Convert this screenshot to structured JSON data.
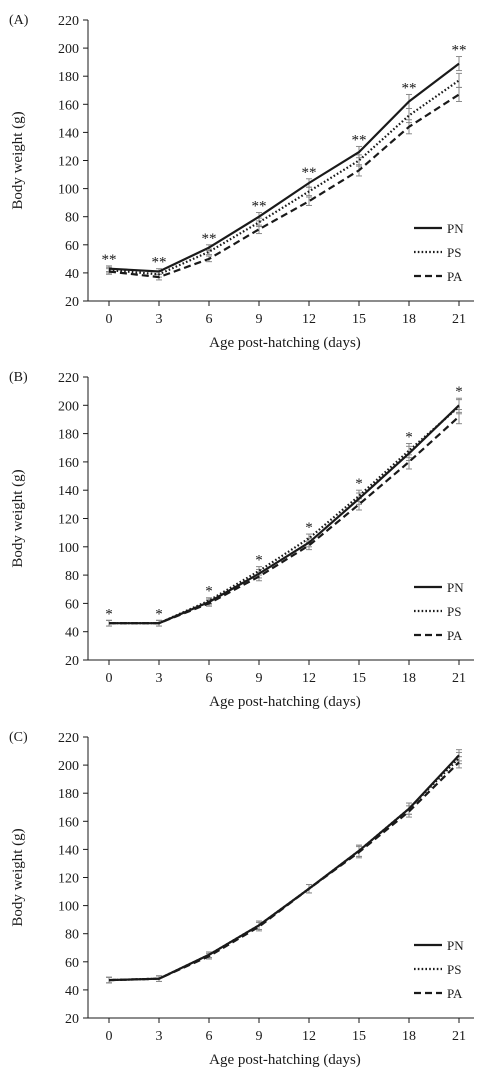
{
  "chart_data": [
    {
      "type": "line",
      "panel_label": "(A)",
      "xlabel": "Age post-hatching (days)",
      "ylabel": "Body weight (g)",
      "x": [
        0,
        3,
        6,
        9,
        12,
        15,
        18,
        21
      ],
      "xticks": [
        "0",
        "3",
        "6",
        "9",
        "12",
        "15",
        "18",
        "21"
      ],
      "ylim": [
        20,
        220
      ],
      "yticks": [
        "20",
        "40",
        "60",
        "80",
        "100",
        "120",
        "140",
        "160",
        "180",
        "200",
        "220"
      ],
      "legend_position": "bottom-right",
      "annotations": [
        "**",
        "**",
        "**",
        "**",
        "**",
        "**",
        "**",
        "**"
      ],
      "series": [
        {
          "name": "PN",
          "style": "solid",
          "values": [
            43,
            41,
            58,
            80,
            104,
            126,
            162,
            189
          ],
          "error": [
            2,
            2,
            2,
            3,
            3,
            4,
            5,
            5
          ]
        },
        {
          "name": "PS",
          "style": "dotted",
          "values": [
            42,
            39,
            55,
            76,
            98,
            120,
            152,
            177
          ],
          "error": [
            2,
            2,
            2,
            3,
            3,
            4,
            5,
            5
          ]
        },
        {
          "name": "PA",
          "style": "dashed",
          "values": [
            41,
            37,
            50,
            71,
            91,
            113,
            144,
            167
          ],
          "error": [
            2,
            2,
            2,
            3,
            3,
            4,
            5,
            5
          ]
        }
      ]
    },
    {
      "type": "line",
      "panel_label": "(B)",
      "xlabel": "Age post-hatching (days)",
      "ylabel": "Body weight (g)",
      "x": [
        0,
        3,
        6,
        9,
        12,
        15,
        18,
        21
      ],
      "xticks": [
        "0",
        "3",
        "6",
        "9",
        "12",
        "15",
        "18",
        "21"
      ],
      "ylim": [
        20,
        220
      ],
      "yticks": [
        "20",
        "40",
        "60",
        "80",
        "100",
        "120",
        "140",
        "160",
        "180",
        "200",
        "220"
      ],
      "legend_position": "bottom-right",
      "annotations": [
        "*",
        "*",
        "*",
        "*",
        "*",
        "*",
        "*",
        "*"
      ],
      "series": [
        {
          "name": "PN",
          "style": "solid",
          "values": [
            46,
            46,
            61,
            81,
            103,
            134,
            166,
            200
          ],
          "error": [
            2,
            2,
            2,
            3,
            3,
            4,
            5,
            5
          ]
        },
        {
          "name": "PS",
          "style": "dotted",
          "values": [
            46,
            46,
            62,
            83,
            106,
            136,
            168,
            199
          ],
          "error": [
            2,
            2,
            2,
            3,
            3,
            4,
            5,
            5
          ]
        },
        {
          "name": "PA",
          "style": "dashed",
          "values": [
            46,
            46,
            60,
            79,
            101,
            130,
            160,
            192
          ],
          "error": [
            2,
            2,
            2,
            3,
            3,
            4,
            5,
            5
          ]
        }
      ]
    },
    {
      "type": "line",
      "panel_label": "(C)",
      "xlabel": "Age post-hatching (days)",
      "ylabel": "Body weight (g)",
      "x": [
        0,
        3,
        6,
        9,
        12,
        15,
        18,
        21
      ],
      "xticks": [
        "0",
        "3",
        "6",
        "9",
        "12",
        "15",
        "18",
        "21"
      ],
      "ylim": [
        20,
        220
      ],
      "yticks": [
        "20",
        "40",
        "60",
        "80",
        "100",
        "120",
        "140",
        "160",
        "180",
        "200",
        "220"
      ],
      "legend_position": "bottom-right",
      "annotations": [],
      "series": [
        {
          "name": "PN",
          "style": "solid",
          "values": [
            47,
            48,
            65,
            86,
            112,
            139,
            169,
            207
          ],
          "error": [
            2,
            2,
            2,
            3,
            3,
            4,
            4,
            4
          ]
        },
        {
          "name": "PS",
          "style": "dotted",
          "values": [
            47,
            48,
            65,
            86,
            112,
            139,
            169,
            205
          ],
          "error": [
            2,
            2,
            2,
            3,
            3,
            4,
            4,
            4
          ]
        },
        {
          "name": "PA",
          "style": "dashed",
          "values": [
            47,
            48,
            64,
            85,
            112,
            138,
            167,
            202
          ],
          "error": [
            2,
            2,
            2,
            3,
            3,
            4,
            4,
            4
          ]
        }
      ]
    }
  ],
  "colors": {
    "line": "#1a1a1a",
    "error_bar": "#8a8a8a",
    "axis": "#1a1a1a"
  }
}
